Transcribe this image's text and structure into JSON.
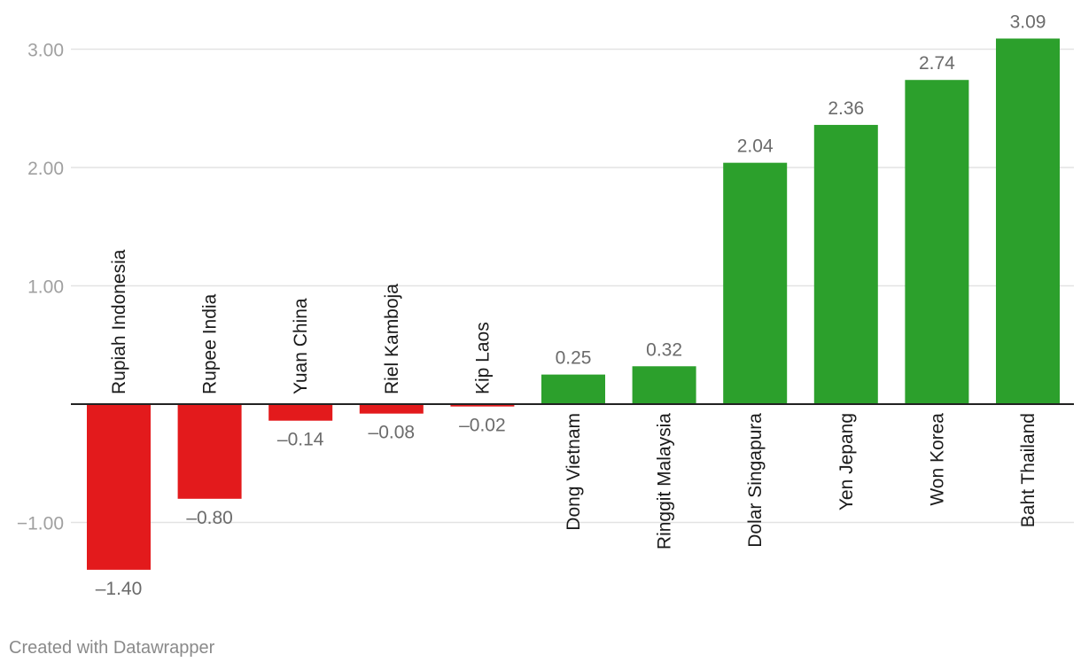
{
  "chart_data": {
    "type": "bar",
    "categories": [
      "Rupiah Indonesia",
      "Rupee India",
      "Yuan China",
      "Riel Kamboja",
      "Kip Laos",
      "Dong Vietnam",
      "Ringgit Malaysia",
      "Dolar Singapura",
      "Yen Jepang",
      "Won Korea",
      "Baht Thailand"
    ],
    "values": [
      -1.4,
      -0.8,
      -0.14,
      -0.08,
      -0.02,
      0.25,
      0.32,
      2.04,
      2.36,
      2.74,
      3.09
    ],
    "value_labels": [
      "–1.40",
      "–0.80",
      "–0.14",
      "–0.08",
      "–0.02",
      "0.25",
      "0.32",
      "2.04",
      "2.36",
      "2.74",
      "3.09"
    ],
    "y_ticks": [
      3,
      2,
      1,
      -1
    ],
    "y_tick_labels": [
      "3.00",
      "2.00",
      "1.00",
      "−1.00"
    ],
    "ylim": [
      -1.5,
      3.1
    ],
    "grid": true,
    "colors": {
      "positive": "#2ca02c",
      "negative": "#e31a1c",
      "grid": "#e3e3e3",
      "axis": "#222222",
      "label": "#6b6b6b",
      "tick": "#a0a0a0",
      "category": "#1a1a1a"
    }
  },
  "footer": {
    "credit": "Created with Datawrapper"
  }
}
